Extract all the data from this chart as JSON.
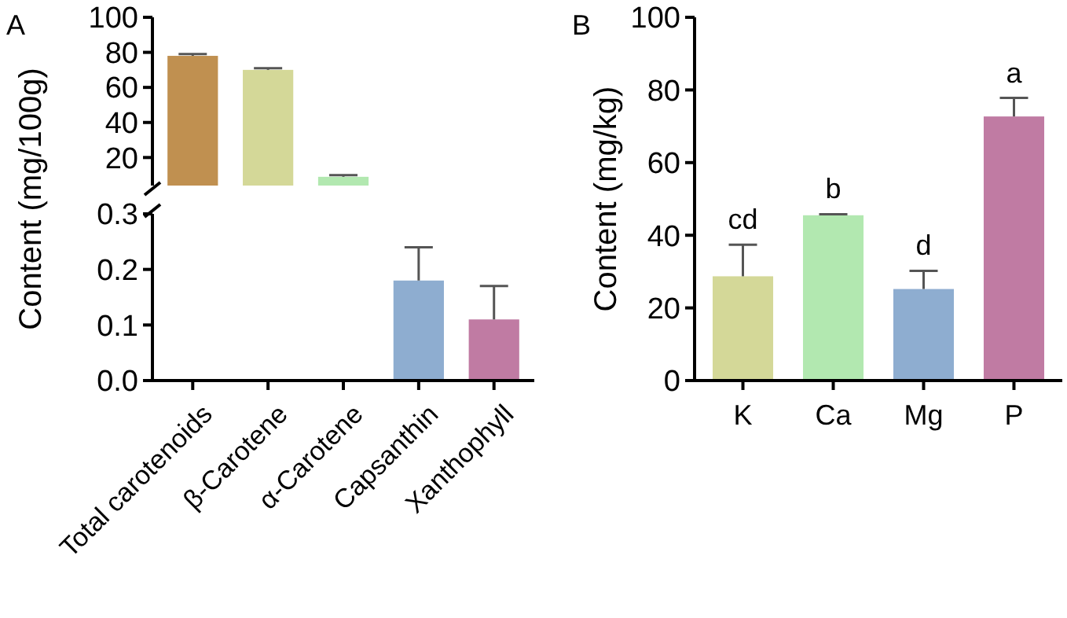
{
  "chart_data": [
    {
      "type": "bar",
      "title": "A",
      "ylabel": "Content (mg/100g)",
      "categories": [
        null,
        null,
        null
      ],
      "values": [
        78,
        70,
        9
      ],
      "errors": [
        1,
        1,
        1
      ],
      "colors": [
        "#c09050",
        "#d4d898",
        "#b2e8b0"
      ],
      "ylim": [
        4,
        100
      ],
      "yticks": [
        20,
        40,
        60,
        80,
        100
      ],
      "tick_labels": "y"
    },
    {
      "type": "bar",
      "categories": [
        "Total carotenoids",
        "β-Carotene",
        "α-Carotene",
        "Capsanthin",
        "Xanthophyll"
      ],
      "values": [
        null,
        null,
        null,
        0.18,
        0.11
      ],
      "errors": [
        null,
        null,
        null,
        0.06,
        0.06
      ],
      "colors": [
        null,
        null,
        null,
        "#8eadd0",
        "#c07ba3"
      ],
      "ylim": [
        0,
        0.3
      ],
      "yticks": [
        {
          "value": 0,
          "label": "0.0"
        },
        0.1,
        0.2,
        0.3
      ]
    },
    {
      "type": "bar",
      "title": "B",
      "ylabel": "Content (mg/kg)",
      "categories": [
        "K",
        "Ca",
        "Mg",
        "P"
      ],
      "values": [
        28.7,
        45.5,
        25.2,
        72.7
      ],
      "errors": [
        8.7,
        0.3,
        5,
        5.1
      ],
      "colors": [
        "#d4d898",
        "#b2e8b0",
        "#8eadd0",
        "#c07ba3"
      ],
      "ylim": [
        0,
        100
      ],
      "yticks": [
        0,
        20,
        40,
        60,
        80,
        100
      ],
      "annotations": [
        "cd",
        "b",
        "d",
        "a"
      ]
    }
  ]
}
